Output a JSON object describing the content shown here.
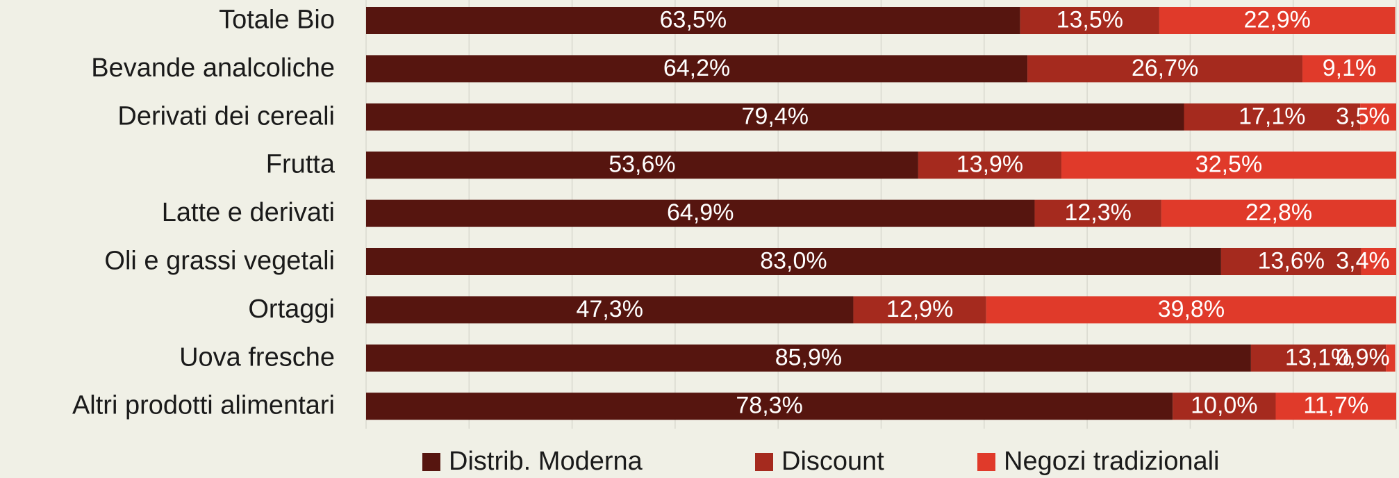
{
  "chart_data": {
    "type": "stacked-barh",
    "categories": [
      "Totale Bio",
      "Bevande analcoliche",
      "Derivati dei cereali",
      "Frutta",
      "Latte e derivati",
      "Oli e grassi vegetali",
      "Ortaggi",
      "Uova fresche",
      "Altri prodotti alimentari"
    ],
    "series": [
      {
        "name": "Distrib. Moderna",
        "color": "#56150f",
        "values": [
          63.5,
          64.2,
          79.4,
          53.6,
          64.9,
          83.0,
          47.3,
          85.9,
          78.3
        ],
        "value_labels": [
          "63,5%",
          "64,2%",
          "79,4%",
          "53,6%",
          "64,9%",
          "83,0%",
          "47,3%",
          "85,9%",
          "78,3%"
        ]
      },
      {
        "name": "Discount",
        "color": "#a52a1e",
        "values": [
          13.5,
          26.7,
          17.1,
          13.9,
          12.3,
          13.6,
          12.9,
          13.1,
          10.0
        ],
        "value_labels": [
          "13,5%",
          "26,7%",
          "17,1%",
          "13,9%",
          "12,3%",
          "13,6%",
          "12,9%",
          "13,1%",
          "10,0%"
        ]
      },
      {
        "name": "Negozi tradizionali",
        "color": "#e03a2a",
        "values": [
          22.9,
          9.1,
          3.5,
          32.5,
          22.8,
          3.4,
          39.8,
          0.9,
          11.7
        ],
        "value_labels": [
          "22,9%",
          "9,1%",
          "3,5%",
          "32,5%",
          "22,8%",
          "3,4%",
          "39,8%",
          "0,9%",
          "11,7%"
        ]
      }
    ],
    "xlim": [
      0,
      100
    ],
    "xticks": [
      0,
      10,
      20,
      30,
      40,
      50,
      60,
      70,
      80,
      90,
      100
    ],
    "grid": true,
    "legend": "bottom"
  }
}
